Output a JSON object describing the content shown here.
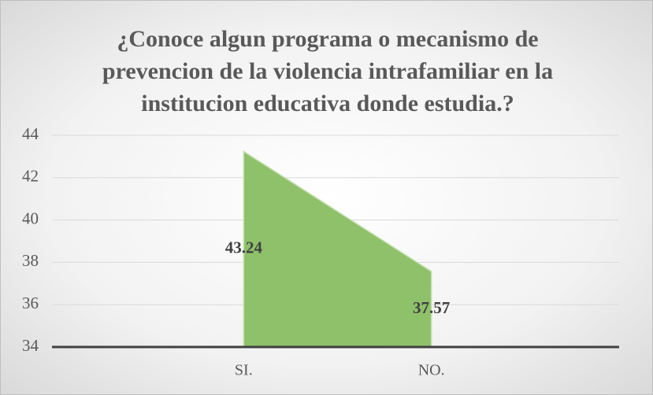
{
  "chart_data": {
    "type": "area",
    "title": "¿Conoce algun programa o mecanismo de prevencion de la violencia intrafamiliar en la institucion educativa donde estudia.?",
    "categories": [
      "SI.",
      "NO."
    ],
    "values": [
      43.24,
      37.57
    ],
    "color": "#8fc16a",
    "ylim": [
      34,
      44
    ],
    "yticks": [
      34,
      36,
      38,
      40,
      42,
      44
    ],
    "grid": true
  }
}
